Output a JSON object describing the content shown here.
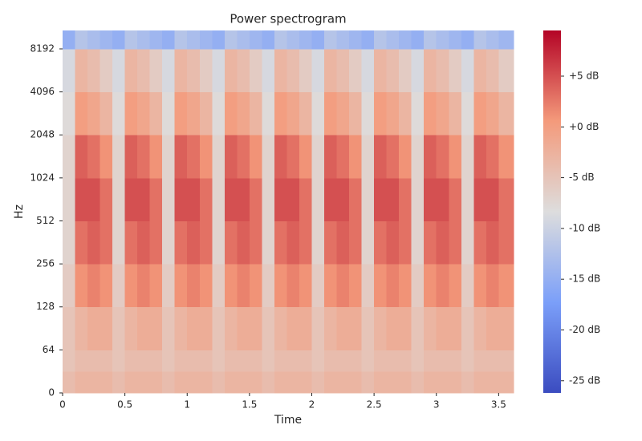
{
  "chart_data": {
    "type": "heatmap",
    "title": "Power spectrogram",
    "xlabel": "Time",
    "ylabel": "Hz",
    "x_edges": [
      0,
      0.1,
      0.2,
      0.3,
      0.4,
      0.5,
      0.6,
      0.7,
      0.8,
      0.9,
      1.0,
      1.1,
      1.2,
      1.3,
      1.4,
      1.5,
      1.6,
      1.7,
      1.8,
      1.9,
      2.0,
      2.1,
      2.2,
      2.3,
      2.4,
      2.5,
      2.6,
      2.7,
      2.8,
      2.9,
      3.0,
      3.1,
      3.2,
      3.3,
      3.4,
      3.5,
      3.62
    ],
    "y_edges": [
      0,
      32,
      64,
      128,
      256,
      512,
      1024,
      2048,
      4096,
      8192,
      11025
    ],
    "z": [
      [
        -4,
        -3,
        -3,
        -3,
        -4,
        -3,
        -3,
        -3,
        -4,
        -3,
        -3,
        -3,
        -4,
        -3,
        -3,
        -3,
        -4,
        -3,
        -3,
        -3,
        -4,
        -3,
        -3,
        -3,
        -4,
        -3,
        -3,
        -3,
        -4,
        -3,
        -3,
        -3,
        -4,
        -3,
        -3,
        -3
      ],
      [
        -5,
        -4,
        -4,
        -4,
        -5,
        -4,
        -4,
        -4,
        -5,
        -4,
        -4,
        -4,
        -5,
        -4,
        -4,
        -4,
        -5,
        -4,
        -4,
        -4,
        -5,
        -4,
        -4,
        -4,
        -5,
        -4,
        -4,
        -4,
        -5,
        -4,
        -4,
        -4,
        -5,
        -4,
        -4,
        -4
      ],
      [
        -5,
        -3,
        -2,
        -2,
        -5,
        -3,
        -2,
        -2,
        -5,
        -3,
        -2,
        -2,
        -5,
        -3,
        -2,
        -2,
        -5,
        -3,
        -2,
        -2,
        -5,
        -3,
        -2,
        -2,
        -5,
        -3,
        -2,
        -2,
        -5,
        -3,
        -2,
        -2,
        -5,
        -3,
        -2,
        -2
      ],
      [
        -6,
        1,
        2,
        1,
        -6,
        1,
        2,
        1,
        -6,
        1,
        2,
        1,
        -6,
        1,
        2,
        1,
        -6,
        1,
        2,
        1,
        -6,
        1,
        2,
        1,
        -6,
        1,
        2,
        1,
        -6,
        1,
        2,
        1,
        -6,
        1,
        2,
        1
      ],
      [
        -7,
        3,
        4,
        3,
        -7,
        3,
        4,
        3,
        -7,
        3,
        4,
        3,
        -7,
        3,
        4,
        3,
        -7,
        3,
        4,
        3,
        -7,
        3,
        4,
        3,
        -7,
        3,
        4,
        3,
        -7,
        3,
        4,
        3,
        -7,
        3,
        4,
        3
      ],
      [
        -7,
        5,
        5,
        3,
        -7,
        5,
        5,
        3,
        -7,
        5,
        5,
        3,
        -7,
        5,
        5,
        3,
        -7,
        5,
        5,
        3,
        -7,
        5,
        5,
        3,
        -7,
        5,
        5,
        3,
        -7,
        5,
        5,
        3,
        -7,
        5,
        5,
        3
      ],
      [
        -7,
        4,
        3,
        1,
        -7,
        4,
        3,
        1,
        -7,
        4,
        3,
        1,
        -7,
        4,
        3,
        1,
        -7,
        4,
        3,
        1,
        -7,
        4,
        3,
        1,
        -7,
        4,
        3,
        1,
        -7,
        4,
        3,
        1,
        -7,
        4,
        3,
        1
      ],
      [
        -8,
        0,
        -1,
        -3,
        -8,
        0,
        -1,
        -3,
        -8,
        0,
        -1,
        -3,
        -8,
        0,
        -1,
        -3,
        -8,
        0,
        -1,
        -3,
        -8,
        0,
        -1,
        -3,
        -8,
        0,
        -1,
        -3,
        -8,
        0,
        -1,
        -3,
        -8,
        0,
        -1,
        -3
      ],
      [
        -9,
        -3,
        -4,
        -6,
        -9,
        -3,
        -4,
        -6,
        -9,
        -3,
        -4,
        -6,
        -9,
        -3,
        -4,
        -6,
        -9,
        -3,
        -4,
        -6,
        -9,
        -3,
        -4,
        -6,
        -9,
        -3,
        -4,
        -6,
        -9,
        -3,
        -4,
        -6,
        -9,
        -3,
        -4,
        -6
      ],
      [
        -15,
        -12,
        -13,
        -14,
        -15,
        -12,
        -13,
        -14,
        -15,
        -12,
        -13,
        -14,
        -15,
        -12,
        -13,
        -14,
        -15,
        -12,
        -13,
        -14,
        -15,
        -12,
        -13,
        -14,
        -15,
        -12,
        -13,
        -14,
        -15,
        -12,
        -13,
        -14,
        -15,
        -12,
        -13,
        -14
      ]
    ],
    "xlim": [
      0,
      3.62
    ],
    "xticks": [
      0,
      0.5,
      1,
      1.5,
      2,
      2.5,
      3,
      3.5
    ],
    "ylim": [
      0,
      11025
    ],
    "yscale": "symlog",
    "linthresh": 64,
    "yticks": [
      0,
      64,
      128,
      256,
      512,
      1024,
      2048,
      4096,
      8192
    ],
    "cmap": [
      "#3b4cc0",
      "#7b9ff9",
      "#dddddd",
      "#f49a7b",
      "#b40426"
    ],
    "clim": [
      -26.2,
      9.5
    ],
    "cticks": [
      {
        "value": 5,
        "label": "+5 dB"
      },
      {
        "value": 0,
        "label": "+0 dB"
      },
      {
        "value": -5,
        "label": "-5 dB"
      },
      {
        "value": -10,
        "label": "-10 dB"
      },
      {
        "value": -15,
        "label": "-15 dB"
      },
      {
        "value": -20,
        "label": "-20 dB"
      },
      {
        "value": -25,
        "label": "-25 dB"
      }
    ]
  }
}
